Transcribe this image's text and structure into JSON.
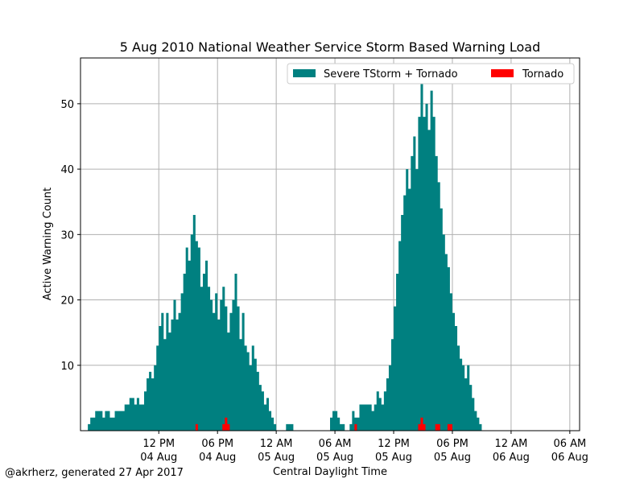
{
  "chart_data": {
    "type": "area",
    "title": "5 Aug 2010 National Weather Service Storm Based Warning Load",
    "xlabel": "Central Daylight Time",
    "ylabel": "Active Warning Count",
    "x_range": [
      "2010-08-04 04:00",
      "2010-08-06 07:00"
    ],
    "ylim": [
      0,
      57
    ],
    "grid": true,
    "legend_placement": "top-right",
    "x_ticks": [
      {
        "time": "2010-08-04 12:00",
        "line1": "12 PM",
        "line2": "04 Aug"
      },
      {
        "time": "2010-08-04 18:00",
        "line1": "06 PM",
        "line2": "04 Aug"
      },
      {
        "time": "2010-08-05 00:00",
        "line1": "12 AM",
        "line2": "05 Aug"
      },
      {
        "time": "2010-08-05 06:00",
        "line1": "06 AM",
        "line2": "05 Aug"
      },
      {
        "time": "2010-08-05 12:00",
        "line1": "12 PM",
        "line2": "05 Aug"
      },
      {
        "time": "2010-08-05 18:00",
        "line1": "06 PM",
        "line2": "05 Aug"
      },
      {
        "time": "2010-08-06 00:00",
        "line1": "12 AM",
        "line2": "06 Aug"
      },
      {
        "time": "2010-08-06 06:00",
        "line1": "06 AM",
        "line2": "06 Aug"
      }
    ],
    "y_ticks": [
      10,
      20,
      30,
      40,
      50
    ],
    "series": [
      {
        "name": "Severe TStorm + Tornado",
        "color": "#008080",
        "points": [
          [
            "2010-08-04 04:45",
            1
          ],
          [
            "2010-08-04 05:00",
            2
          ],
          [
            "2010-08-04 05:30",
            3
          ],
          [
            "2010-08-04 06:15",
            2
          ],
          [
            "2010-08-04 06:30",
            3
          ],
          [
            "2010-08-04 07:00",
            2
          ],
          [
            "2010-08-04 07:30",
            3
          ],
          [
            "2010-08-04 08:30",
            4
          ],
          [
            "2010-08-04 09:00",
            5
          ],
          [
            "2010-08-04 09:30",
            4
          ],
          [
            "2010-08-04 09:45",
            5
          ],
          [
            "2010-08-04 10:00",
            4
          ],
          [
            "2010-08-04 10:30",
            6
          ],
          [
            "2010-08-04 10:45",
            8
          ],
          [
            "2010-08-04 11:00",
            9
          ],
          [
            "2010-08-04 11:15",
            8
          ],
          [
            "2010-08-04 11:30",
            10
          ],
          [
            "2010-08-04 11:45",
            13
          ],
          [
            "2010-08-04 12:00",
            16
          ],
          [
            "2010-08-04 12:15",
            18
          ],
          [
            "2010-08-04 12:30",
            14
          ],
          [
            "2010-08-04 12:45",
            18
          ],
          [
            "2010-08-04 13:00",
            15
          ],
          [
            "2010-08-04 13:15",
            17
          ],
          [
            "2010-08-04 13:30",
            20
          ],
          [
            "2010-08-04 13:45",
            17
          ],
          [
            "2010-08-04 14:00",
            18
          ],
          [
            "2010-08-04 14:15",
            21
          ],
          [
            "2010-08-04 14:30",
            24
          ],
          [
            "2010-08-04 14:45",
            28
          ],
          [
            "2010-08-04 15:00",
            26
          ],
          [
            "2010-08-04 15:15",
            30
          ],
          [
            "2010-08-04 15:30",
            33
          ],
          [
            "2010-08-04 15:45",
            29
          ],
          [
            "2010-08-04 16:00",
            28
          ],
          [
            "2010-08-04 16:15",
            22
          ],
          [
            "2010-08-04 16:30",
            24
          ],
          [
            "2010-08-04 16:45",
            26
          ],
          [
            "2010-08-04 17:00",
            22
          ],
          [
            "2010-08-04 17:15",
            20
          ],
          [
            "2010-08-04 17:30",
            18
          ],
          [
            "2010-08-04 17:45",
            21
          ],
          [
            "2010-08-04 18:00",
            17
          ],
          [
            "2010-08-04 18:15",
            20
          ],
          [
            "2010-08-04 18:30",
            22
          ],
          [
            "2010-08-04 18:45",
            19
          ],
          [
            "2010-08-04 19:00",
            15
          ],
          [
            "2010-08-04 19:15",
            18
          ],
          [
            "2010-08-04 19:30",
            20
          ],
          [
            "2010-08-04 19:45",
            24
          ],
          [
            "2010-08-04 20:00",
            19
          ],
          [
            "2010-08-04 20:15",
            14
          ],
          [
            "2010-08-04 20:30",
            18
          ],
          [
            "2010-08-04 20:45",
            13
          ],
          [
            "2010-08-04 21:00",
            12
          ],
          [
            "2010-08-04 21:15",
            10
          ],
          [
            "2010-08-04 21:30",
            13
          ],
          [
            "2010-08-04 21:45",
            11
          ],
          [
            "2010-08-04 22:00",
            9
          ],
          [
            "2010-08-04 22:15",
            7
          ],
          [
            "2010-08-04 22:30",
            6
          ],
          [
            "2010-08-04 22:45",
            4
          ],
          [
            "2010-08-04 23:00",
            5
          ],
          [
            "2010-08-04 23:15",
            3
          ],
          [
            "2010-08-04 23:30",
            2
          ],
          [
            "2010-08-04 23:45",
            1
          ],
          [
            "2010-08-05 00:00",
            0
          ],
          [
            "2010-08-05 01:00",
            1
          ],
          [
            "2010-08-05 01:45",
            0
          ],
          [
            "2010-08-05 05:30",
            2
          ],
          [
            "2010-08-05 05:45",
            3
          ],
          [
            "2010-08-05 06:15",
            2
          ],
          [
            "2010-08-05 06:30",
            1
          ],
          [
            "2010-08-05 07:00",
            0
          ],
          [
            "2010-08-05 07:30",
            1
          ],
          [
            "2010-08-05 07:45",
            3
          ],
          [
            "2010-08-05 08:00",
            2
          ],
          [
            "2010-08-05 08:30",
            4
          ],
          [
            "2010-08-05 09:45",
            3
          ],
          [
            "2010-08-05 10:00",
            4
          ],
          [
            "2010-08-05 10:15",
            6
          ],
          [
            "2010-08-05 10:30",
            5
          ],
          [
            "2010-08-05 10:45",
            4
          ],
          [
            "2010-08-05 11:00",
            6
          ],
          [
            "2010-08-05 11:15",
            8
          ],
          [
            "2010-08-05 11:30",
            10
          ],
          [
            "2010-08-05 11:45",
            14
          ],
          [
            "2010-08-05 12:00",
            19
          ],
          [
            "2010-08-05 12:15",
            24
          ],
          [
            "2010-08-05 12:30",
            29
          ],
          [
            "2010-08-05 12:45",
            33
          ],
          [
            "2010-08-05 13:00",
            36
          ],
          [
            "2010-08-05 13:15",
            40
          ],
          [
            "2010-08-05 13:30",
            37
          ],
          [
            "2010-08-05 13:45",
            42
          ],
          [
            "2010-08-05 14:00",
            45
          ],
          [
            "2010-08-05 14:15",
            40
          ],
          [
            "2010-08-05 14:30",
            48
          ],
          [
            "2010-08-05 14:45",
            55
          ],
          [
            "2010-08-05 15:00",
            48
          ],
          [
            "2010-08-05 15:15",
            50
          ],
          [
            "2010-08-05 15:30",
            46
          ],
          [
            "2010-08-05 15:45",
            52
          ],
          [
            "2010-08-05 16:00",
            48
          ],
          [
            "2010-08-05 16:15",
            42
          ],
          [
            "2010-08-05 16:30",
            38
          ],
          [
            "2010-08-05 16:45",
            34
          ],
          [
            "2010-08-05 17:00",
            30
          ],
          [
            "2010-08-05 17:15",
            27
          ],
          [
            "2010-08-05 17:30",
            25
          ],
          [
            "2010-08-05 17:45",
            21
          ],
          [
            "2010-08-05 18:00",
            18
          ],
          [
            "2010-08-05 18:15",
            16
          ],
          [
            "2010-08-05 18:30",
            13
          ],
          [
            "2010-08-05 18:45",
            11
          ],
          [
            "2010-08-05 19:00",
            10
          ],
          [
            "2010-08-05 19:15",
            8
          ],
          [
            "2010-08-05 19:30",
            10
          ],
          [
            "2010-08-05 19:45",
            7
          ],
          [
            "2010-08-05 20:00",
            5
          ],
          [
            "2010-08-05 20:15",
            3
          ],
          [
            "2010-08-05 20:30",
            2
          ],
          [
            "2010-08-05 20:45",
            1
          ],
          [
            "2010-08-05 21:00",
            0
          ]
        ]
      },
      {
        "name": "Tornado",
        "color": "#ff0000",
        "points": [
          [
            "2010-08-04 15:45",
            1
          ],
          [
            "2010-08-04 16:00",
            0
          ],
          [
            "2010-08-04 18:30",
            1
          ],
          [
            "2010-08-04 18:45",
            2
          ],
          [
            "2010-08-04 19:00",
            1
          ],
          [
            "2010-08-04 19:15",
            0
          ],
          [
            "2010-08-05 08:00",
            1
          ],
          [
            "2010-08-05 08:15",
            0
          ],
          [
            "2010-08-05 14:30",
            1
          ],
          [
            "2010-08-05 14:45",
            2
          ],
          [
            "2010-08-05 15:00",
            1
          ],
          [
            "2010-08-05 15:15",
            0
          ],
          [
            "2010-08-05 16:15",
            1
          ],
          [
            "2010-08-05 16:45",
            0
          ],
          [
            "2010-08-05 17:30",
            1
          ],
          [
            "2010-08-05 18:00",
            0
          ]
        ]
      }
    ]
  },
  "footer": "@akrherz, generated 27 Apr 2017"
}
